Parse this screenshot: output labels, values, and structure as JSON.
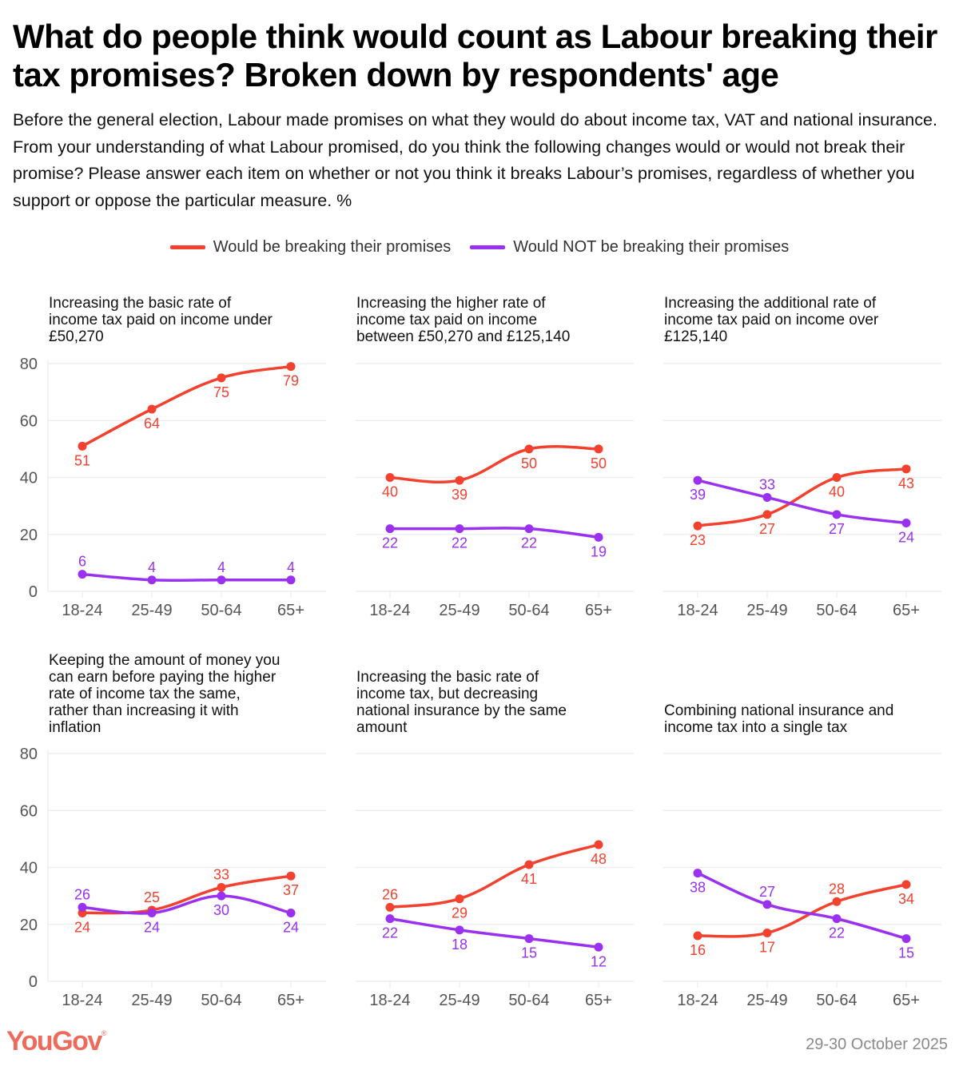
{
  "title": "What do people think would count as Labour breaking their tax promises? Broken down by respondents' age",
  "subtitle": "Before the general election, Labour made promises on what they would do about income tax, VAT and national insurance. From your understanding of what Labour promised, do you think the following changes would or would not break their promise? Please answer each item on whether or not you think it breaks Labour’s promises, regardless of whether you support or oppose the particular measure. %",
  "legend": [
    {
      "label": "Would be breaking their promises",
      "color": "#f2412e"
    },
    {
      "label": "Would NOT be breaking their promises",
      "color": "#9a31f0"
    }
  ],
  "footer": {
    "brand": "YouGov",
    "brand_mark": "®",
    "date": "29-30 October 2025"
  },
  "chart_data": [
    {
      "type": "line",
      "title": "Increasing the basic rate of income tax paid on income under £50,270",
      "title_lines": [
        "Increasing the basic rate of",
        "income tax paid on income under",
        "£50,270"
      ],
      "categories": [
        "18-24",
        "25-49",
        "50-64",
        "65+"
      ],
      "ylim": [
        0,
        80
      ],
      "yticks": [
        0,
        20,
        40,
        60,
        80
      ],
      "show_yticks": true,
      "grid": true,
      "series": [
        {
          "name": "Would be breaking their promises",
          "color": "#f2412e",
          "values": [
            51,
            64,
            75,
            79
          ],
          "label_pos": [
            "below",
            "below",
            "below",
            "below"
          ]
        },
        {
          "name": "Would NOT be breaking their promises",
          "color": "#9a31f0",
          "values": [
            6,
            4,
            4,
            4
          ],
          "label_pos": [
            "above",
            "above",
            "above",
            "above"
          ]
        }
      ]
    },
    {
      "type": "line",
      "title": "Increasing the higher rate of income tax paid on income between £50,270 and £125,140",
      "title_lines": [
        "Increasing the higher rate of",
        "income tax paid on income",
        "between £50,270 and £125,140"
      ],
      "categories": [
        "18-24",
        "25-49",
        "50-64",
        "65+"
      ],
      "ylim": [
        0,
        80
      ],
      "yticks": [
        0,
        20,
        40,
        60,
        80
      ],
      "show_yticks": false,
      "grid": true,
      "series": [
        {
          "name": "Would be breaking their promises",
          "color": "#f2412e",
          "values": [
            40,
            39,
            50,
            50
          ],
          "label_pos": [
            "below",
            "below",
            "below",
            "below"
          ]
        },
        {
          "name": "Would NOT be breaking their promises",
          "color": "#9a31f0",
          "values": [
            22,
            22,
            22,
            19
          ],
          "label_pos": [
            "below",
            "below",
            "below",
            "below"
          ]
        }
      ]
    },
    {
      "type": "line",
      "title": "Increasing the additional rate of income tax paid on income over £125,140",
      "title_lines": [
        "Increasing the additional rate of",
        "income tax paid on income over",
        "£125,140"
      ],
      "categories": [
        "18-24",
        "25-49",
        "50-64",
        "65+"
      ],
      "ylim": [
        0,
        80
      ],
      "yticks": [
        0,
        20,
        40,
        60,
        80
      ],
      "show_yticks": false,
      "grid": true,
      "series": [
        {
          "name": "Would be breaking their promises",
          "color": "#f2412e",
          "values": [
            23,
            27,
            40,
            43
          ],
          "label_pos": [
            "below",
            "below",
            "below",
            "below"
          ]
        },
        {
          "name": "Would NOT be breaking their promises",
          "color": "#9a31f0",
          "values": [
            39,
            33,
            27,
            24
          ],
          "label_pos": [
            "below",
            "above",
            "below",
            "below"
          ]
        }
      ]
    },
    {
      "type": "line",
      "title": "Keeping the amount of money you can earn before paying the higher rate of income tax the same, rather than increasing it with inflation",
      "title_lines": [
        "Keeping the amount of money you",
        "can earn before paying the higher",
        "rate of income tax the same,",
        "rather than increasing it with",
        "inflation"
      ],
      "categories": [
        "18-24",
        "25-49",
        "50-64",
        "65+"
      ],
      "ylim": [
        0,
        80
      ],
      "yticks": [
        0,
        20,
        40,
        60,
        80
      ],
      "show_yticks": true,
      "grid": true,
      "series": [
        {
          "name": "Would be breaking their promises",
          "color": "#f2412e",
          "values": [
            24,
            25,
            33,
            37
          ],
          "label_pos": [
            "below",
            "above",
            "above",
            "below"
          ]
        },
        {
          "name": "Would NOT be breaking their promises",
          "color": "#9a31f0",
          "values": [
            26,
            24,
            30,
            24
          ],
          "label_pos": [
            "above",
            "below",
            "below",
            "below"
          ]
        }
      ]
    },
    {
      "type": "line",
      "title": "Increasing the basic rate of income tax, but decreasing national insurance by the same amount",
      "title_lines": [
        "Increasing the basic rate of",
        "income tax, but decreasing",
        "national insurance by the same",
        "amount"
      ],
      "categories": [
        "18-24",
        "25-49",
        "50-64",
        "65+"
      ],
      "ylim": [
        0,
        80
      ],
      "yticks": [
        0,
        20,
        40,
        60,
        80
      ],
      "show_yticks": false,
      "grid": true,
      "series": [
        {
          "name": "Would be breaking their promises",
          "color": "#f2412e",
          "values": [
            26,
            29,
            41,
            48
          ],
          "label_pos": [
            "above",
            "below",
            "below",
            "below"
          ]
        },
        {
          "name": "Would NOT be breaking their promises",
          "color": "#9a31f0",
          "values": [
            22,
            18,
            15,
            12
          ],
          "label_pos": [
            "below",
            "below",
            "below",
            "below"
          ]
        }
      ]
    },
    {
      "type": "line",
      "title": "Combining national insurance and income tax into a single tax",
      "title_lines": [
        "Combining national insurance and",
        "income tax into a single tax"
      ],
      "categories": [
        "18-24",
        "25-49",
        "50-64",
        "65+"
      ],
      "ylim": [
        0,
        80
      ],
      "yticks": [
        0,
        20,
        40,
        60,
        80
      ],
      "show_yticks": false,
      "grid": true,
      "series": [
        {
          "name": "Would be breaking their promises",
          "color": "#f2412e",
          "values": [
            16,
            17,
            28,
            34
          ],
          "label_pos": [
            "below",
            "below",
            "above",
            "below"
          ]
        },
        {
          "name": "Would NOT be breaking their promises",
          "color": "#9a31f0",
          "values": [
            38,
            27,
            22,
            15
          ],
          "label_pos": [
            "below",
            "above",
            "below",
            "below"
          ]
        }
      ]
    }
  ]
}
